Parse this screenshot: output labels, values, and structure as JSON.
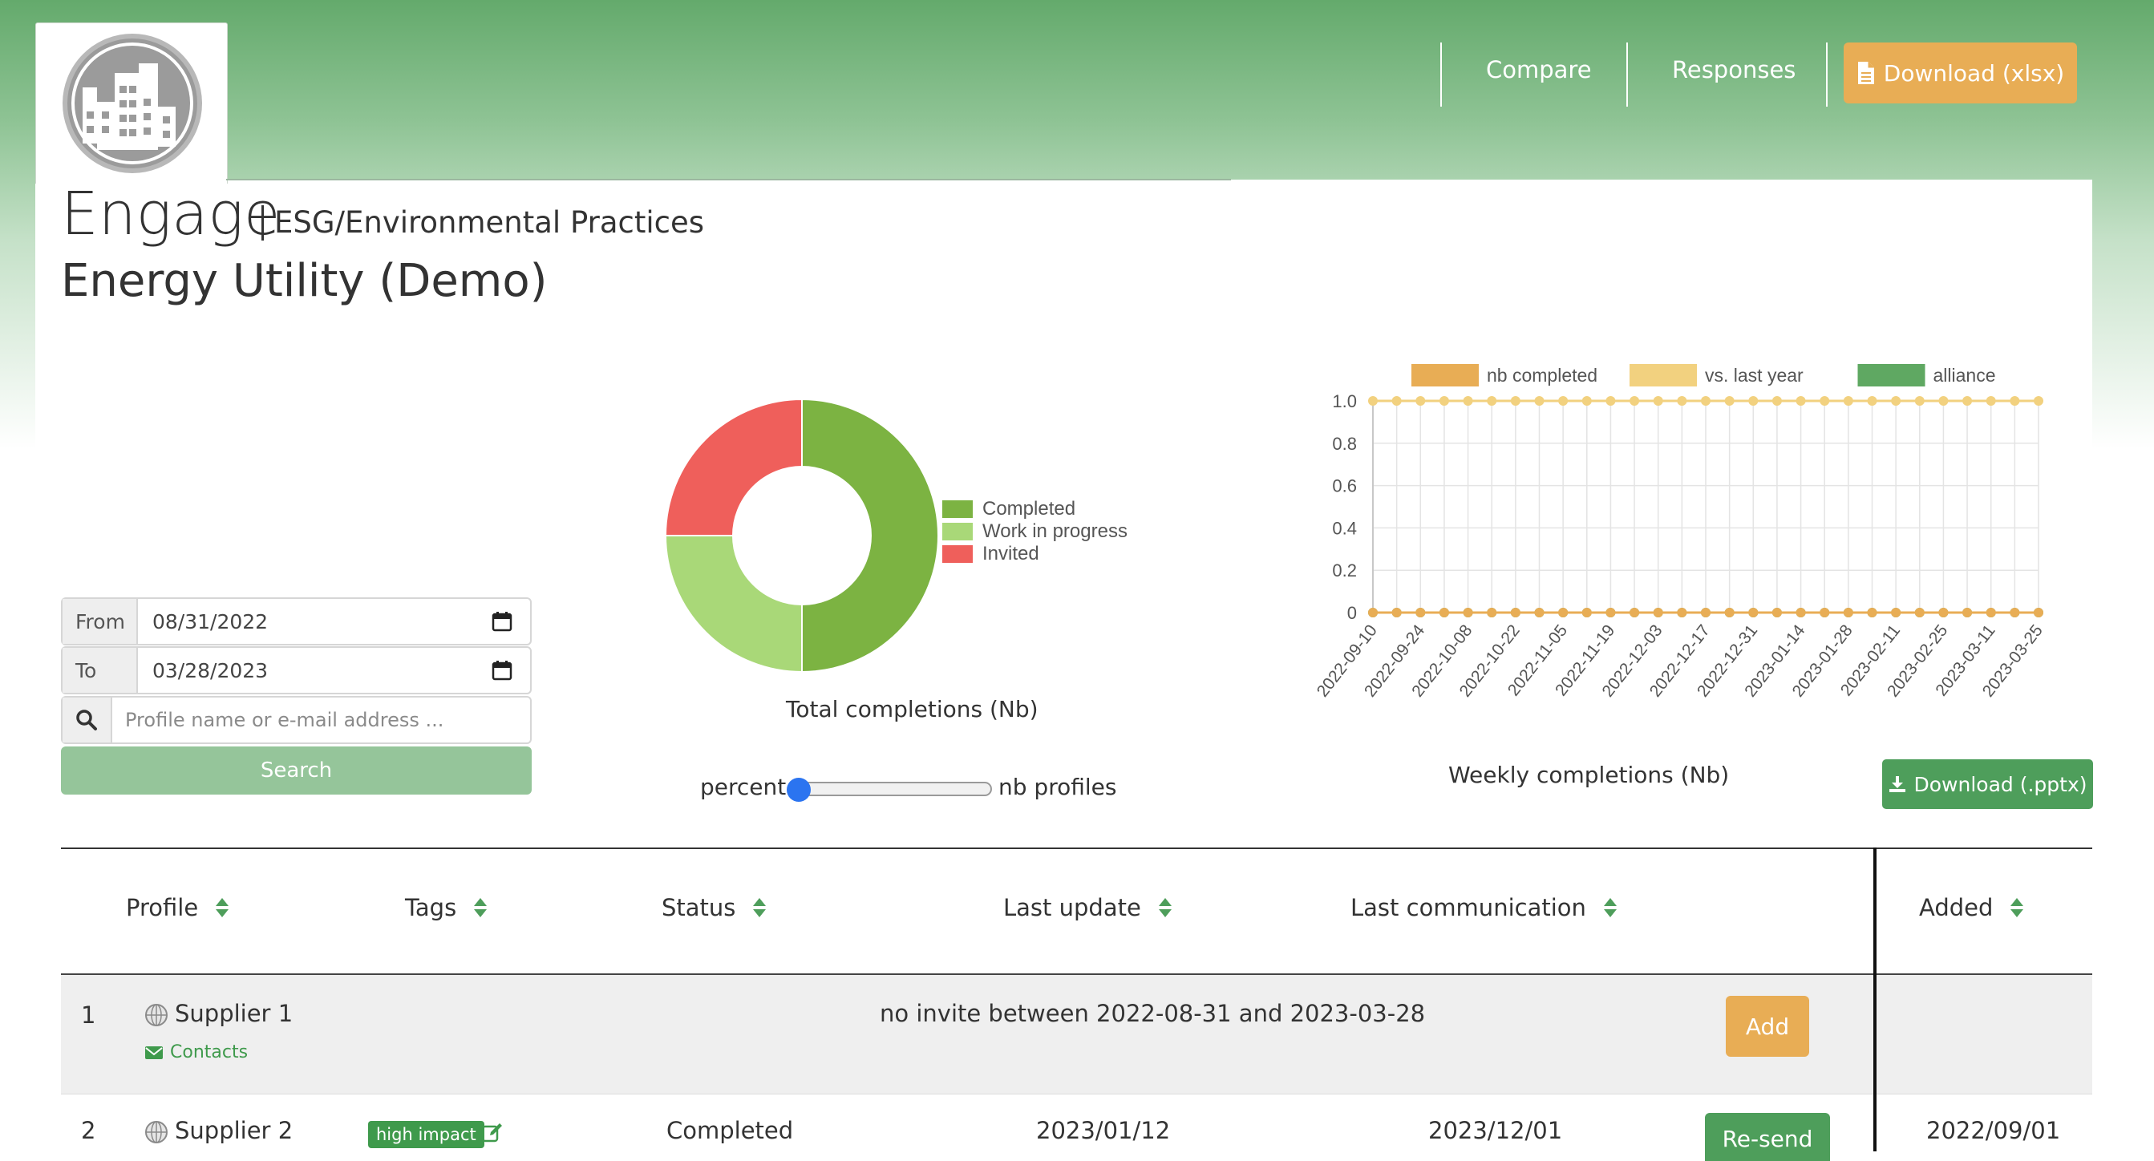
{
  "header": {
    "nav": {
      "compare_label": "Compare",
      "responses_label": "Responses",
      "download_xlsx_label": "Download (xlsx)"
    }
  },
  "title": {
    "app_name": "Engage",
    "campaign": "ESG/Environmental Practices",
    "organization": "Energy Utility (Demo)"
  },
  "filters": {
    "from_label": "From",
    "from_value": "08/31/2022",
    "to_label": "To",
    "to_value": "03/28/2023",
    "search_placeholder": "Profile name or e-mail address ...",
    "search_button": "Search"
  },
  "donut": {
    "caption": "Total completions (Nb)",
    "slider_left": "percent",
    "slider_right": "nb profiles",
    "slider_value": 0
  },
  "line_chart": {
    "caption": "Weekly completions (Nb)",
    "download_pptx_label": "Download (.pptx)"
  },
  "chart_data": [
    {
      "type": "pie",
      "variant": "donut",
      "labels": [
        "Completed",
        "Work in progress",
        "Invited"
      ],
      "values": [
        50,
        25,
        25
      ],
      "colors": [
        "#7cb342",
        "#a9d878",
        "#ef5f5b"
      ],
      "legend": "right"
    },
    {
      "type": "line",
      "x": [
        "2022-09-10",
        "2022-09-17",
        "2022-09-24",
        "2022-10-01",
        "2022-10-08",
        "2022-10-15",
        "2022-10-22",
        "2022-10-29",
        "2022-11-05",
        "2022-11-12",
        "2022-11-19",
        "2022-11-26",
        "2022-12-03",
        "2022-12-10",
        "2022-12-17",
        "2022-12-24",
        "2022-12-31",
        "2023-01-07",
        "2023-01-14",
        "2023-01-21",
        "2023-01-28",
        "2023-02-04",
        "2023-02-11",
        "2023-02-18",
        "2023-02-25",
        "2023-03-04",
        "2023-03-11",
        "2023-03-18",
        "2023-03-25"
      ],
      "x_tick_labels": [
        "2022-09-10",
        "2022-09-24",
        "2022-10-08",
        "2022-10-22",
        "2022-11-05",
        "2022-11-19",
        "2022-12-03",
        "2022-12-17",
        "2022-12-31",
        "2023-01-14",
        "2023-01-28",
        "2023-02-11",
        "2023-02-25",
        "2023-03-11",
        "2023-03-25"
      ],
      "y_tick_labels": [
        "0",
        "0.2",
        "0.4",
        "0.6",
        "0.8",
        "1.0"
      ],
      "ylim": [
        0,
        1
      ],
      "grid": true,
      "legend": "top",
      "series": [
        {
          "name": "nb completed",
          "color": "#e8ad55",
          "values": [
            0,
            0,
            0,
            0,
            0,
            0,
            0,
            0,
            0,
            0,
            0,
            0,
            0,
            0,
            0,
            0,
            0,
            0,
            0,
            0,
            0,
            0,
            0,
            0,
            0,
            0,
            0,
            0,
            0
          ]
        },
        {
          "name": "vs. last year",
          "color": "#f2d17f",
          "values": [
            1,
            1,
            1,
            1,
            1,
            1,
            1,
            1,
            1,
            1,
            1,
            1,
            1,
            1,
            1,
            1,
            1,
            1,
            1,
            1,
            1,
            1,
            1,
            1,
            1,
            1,
            1,
            1,
            1
          ]
        },
        {
          "name": "alliance",
          "color": "#5fa862",
          "values": [
            0,
            0,
            0,
            0,
            0,
            0,
            0,
            0,
            0,
            0,
            0,
            0,
            0,
            0,
            0,
            0,
            0,
            0,
            0,
            0,
            0,
            0,
            0,
            0,
            0,
            0,
            0,
            0,
            0
          ]
        }
      ]
    }
  ],
  "table": {
    "headers": {
      "profile": "Profile",
      "tags": "Tags",
      "status": "Status",
      "last_update": "Last update",
      "last_communication": "Last communication",
      "added": "Added"
    },
    "rows": [
      {
        "index": "1",
        "profile": "Supplier 1",
        "contacts": "Contacts",
        "message": "no invite between 2022-08-31 and 2023-03-28",
        "action": "Add"
      },
      {
        "index": "2",
        "profile": "Supplier 2",
        "tag": "high impact",
        "status": "Completed",
        "last_update": "2023/01/12",
        "last_communication": "2023/12/01",
        "action": "Re-send",
        "added": "2022/09/01"
      }
    ]
  }
}
